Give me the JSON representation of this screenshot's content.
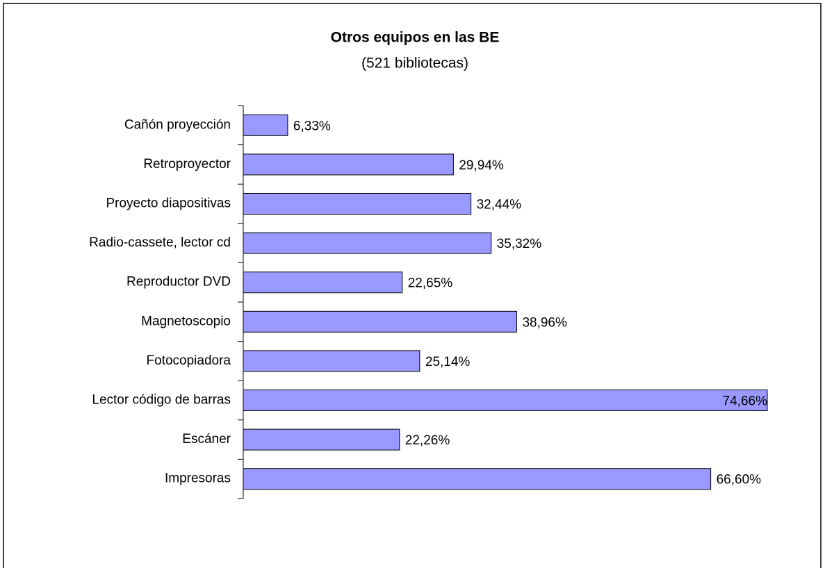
{
  "chart_data": {
    "type": "bar",
    "orientation": "horizontal",
    "title": "Otros equipos en las BE",
    "subtitle": "(521 bibliotecas)",
    "categories": [
      "Cañón proyección",
      "Retroproyector",
      "Proyecto diapositivas",
      "Radio-cassete, lector cd",
      "Reproductor DVD",
      "Magnetoscopio",
      "Fotocopiadora",
      "Lector código de barras",
      "Escáner",
      "Impresoras"
    ],
    "values": [
      6.33,
      29.94,
      32.44,
      35.32,
      22.65,
      38.96,
      25.14,
      74.66,
      22.26,
      66.6
    ],
    "value_labels": [
      "6,33%",
      "29,94%",
      "32,44%",
      "35,32%",
      "22,65%",
      "38,96%",
      "25,14%",
      "74,66%",
      "22,26%",
      "66,60%"
    ],
    "color": "#9999ff"
  }
}
